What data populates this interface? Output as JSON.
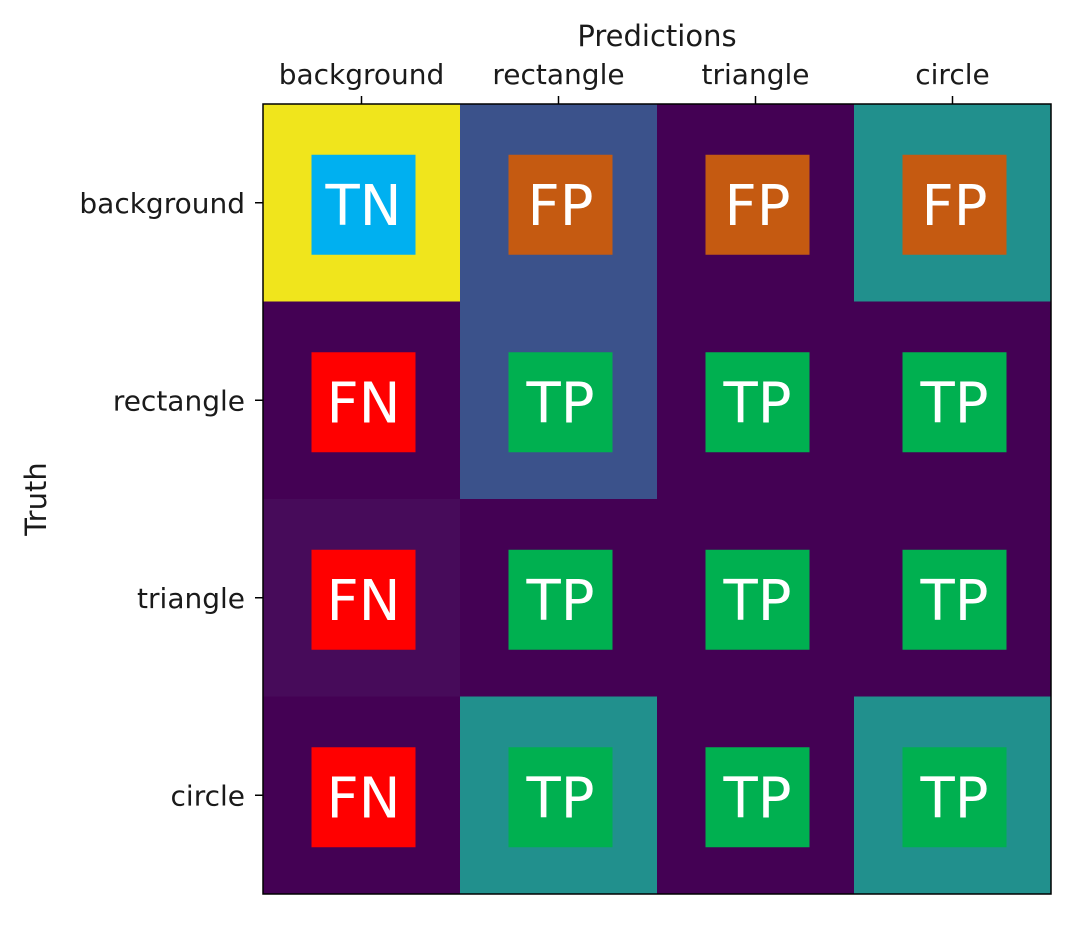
{
  "chart_data": {
    "type": "heatmap",
    "title": "",
    "xlabel": "Predictions",
    "ylabel": "Truth",
    "x_categories": [
      "background",
      "rectangle",
      "triangle",
      "circle"
    ],
    "y_categories": [
      "background",
      "rectangle",
      "triangle",
      "circle"
    ],
    "x_axis_position": "top",
    "grid": false,
    "colormap": "viridis",
    "cell_colors": [
      [
        "#f0e51c",
        "#3b528b",
        "#440154",
        "#21908d"
      ],
      [
        "#440154",
        "#3b528b",
        "#440154",
        "#440154"
      ],
      [
        "#470b5a",
        "#440154",
        "#440154",
        "#440154"
      ],
      [
        "#440154",
        "#21908d",
        "#440154",
        "#21908d"
      ]
    ],
    "annotations": [
      [
        "TN",
        "FP",
        "FP",
        "FP"
      ],
      [
        "FN",
        "TP",
        "TP",
        "TP"
      ],
      [
        "FN",
        "TP",
        "TP",
        "TP"
      ],
      [
        "FN",
        "TP",
        "TP",
        "TP"
      ]
    ],
    "annotation_colors": {
      "TN": "#00b0f0",
      "FP": "#c55a11",
      "FN": "#ff0000",
      "TP": "#00b050"
    }
  }
}
